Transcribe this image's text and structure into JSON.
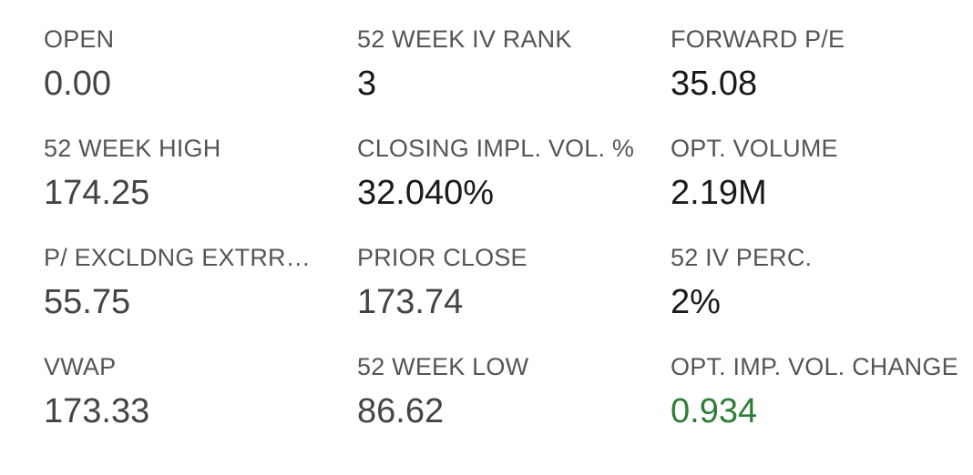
{
  "colors": {
    "label": "#555555",
    "value_default": "#444444",
    "value_dark": "#1a1a1a",
    "positive": "#2f7d3a"
  },
  "stats": {
    "open": {
      "label": "OPEN",
      "value": "0.00"
    },
    "iv_rank_52w": {
      "label": "52 WEEK IV RANK",
      "value": "3"
    },
    "forward_pe": {
      "label": "FORWARD P/E",
      "value": "35.08"
    },
    "high_52w": {
      "label": "52 WEEK HIGH",
      "value": "174.25"
    },
    "closing_impl_vol": {
      "label": "CLOSING IMPL. VOL. %",
      "value": "32.040%"
    },
    "opt_volume": {
      "label": "OPT. VOLUME",
      "value": "2.19M"
    },
    "pe_excl_extra": {
      "label": "P/ EXCLDNG EXTRRD…",
      "value": "55.75"
    },
    "prior_close": {
      "label": "PRIOR CLOSE",
      "value": "173.74"
    },
    "iv_perc_52": {
      "label": "52 IV PERC.",
      "value": "2%"
    },
    "vwap": {
      "label": "VWAP",
      "value": "173.33"
    },
    "low_52w": {
      "label": "52 WEEK LOW",
      "value": "86.62"
    },
    "opt_imp_vol_change": {
      "label": "OPT. IMP. VOL. CHANGE",
      "value": "0.934"
    }
  }
}
